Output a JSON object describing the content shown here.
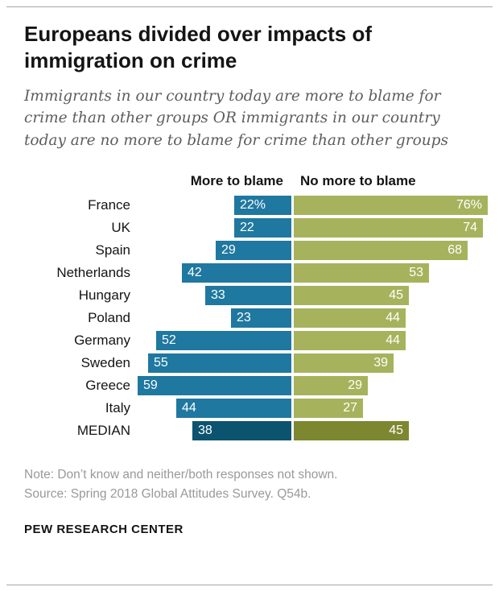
{
  "page": {
    "title": "Europeans divided over impacts of immigration on crime",
    "subtitle": "Immigrants in our country today are more to blame for crime than other groups OR immigrants in our country today are no more to blame for crime than other groups",
    "note": "Note: Don’t know and neither/both responses not shown.",
    "source": "Source: Spring 2018 Global Attitudes Survey. Q54b.",
    "footer": "PEW RESEARCH CENTER"
  },
  "chart_data": {
    "type": "bar",
    "layout": "diverging-horizontal",
    "title": "Europeans divided over impacts of immigration on crime",
    "categories": [
      "France",
      "UK",
      "Spain",
      "Netherlands",
      "Hungary",
      "Poland",
      "Germany",
      "Sweden",
      "Greece",
      "Italy",
      "MEDIAN"
    ],
    "series": [
      {
        "name": "More to blame",
        "side": "left",
        "values": [
          22,
          22,
          29,
          42,
          33,
          23,
          52,
          55,
          59,
          44,
          38
        ],
        "labels": [
          "22%",
          "22",
          "29",
          "42",
          "33",
          "23",
          "52",
          "55",
          "59",
          "44",
          "38"
        ],
        "color": "#1f78a0",
        "median_color": "#0c536f"
      },
      {
        "name": "No more to blame",
        "side": "right",
        "values": [
          76,
          74,
          68,
          53,
          45,
          44,
          44,
          39,
          29,
          27,
          45
        ],
        "labels": [
          "76%",
          "74",
          "68",
          "53",
          "45",
          "44",
          "44",
          "39",
          "29",
          "27",
          "45"
        ],
        "color": "#a6b35c",
        "median_color": "#7d872f"
      }
    ],
    "median_category": "MEDIAN",
    "value_unit": "%",
    "xlim": [
      0,
      76
    ],
    "grid": false,
    "legend_position": "top-as-column-headers",
    "bar_value_label_color": "#ffffff"
  }
}
